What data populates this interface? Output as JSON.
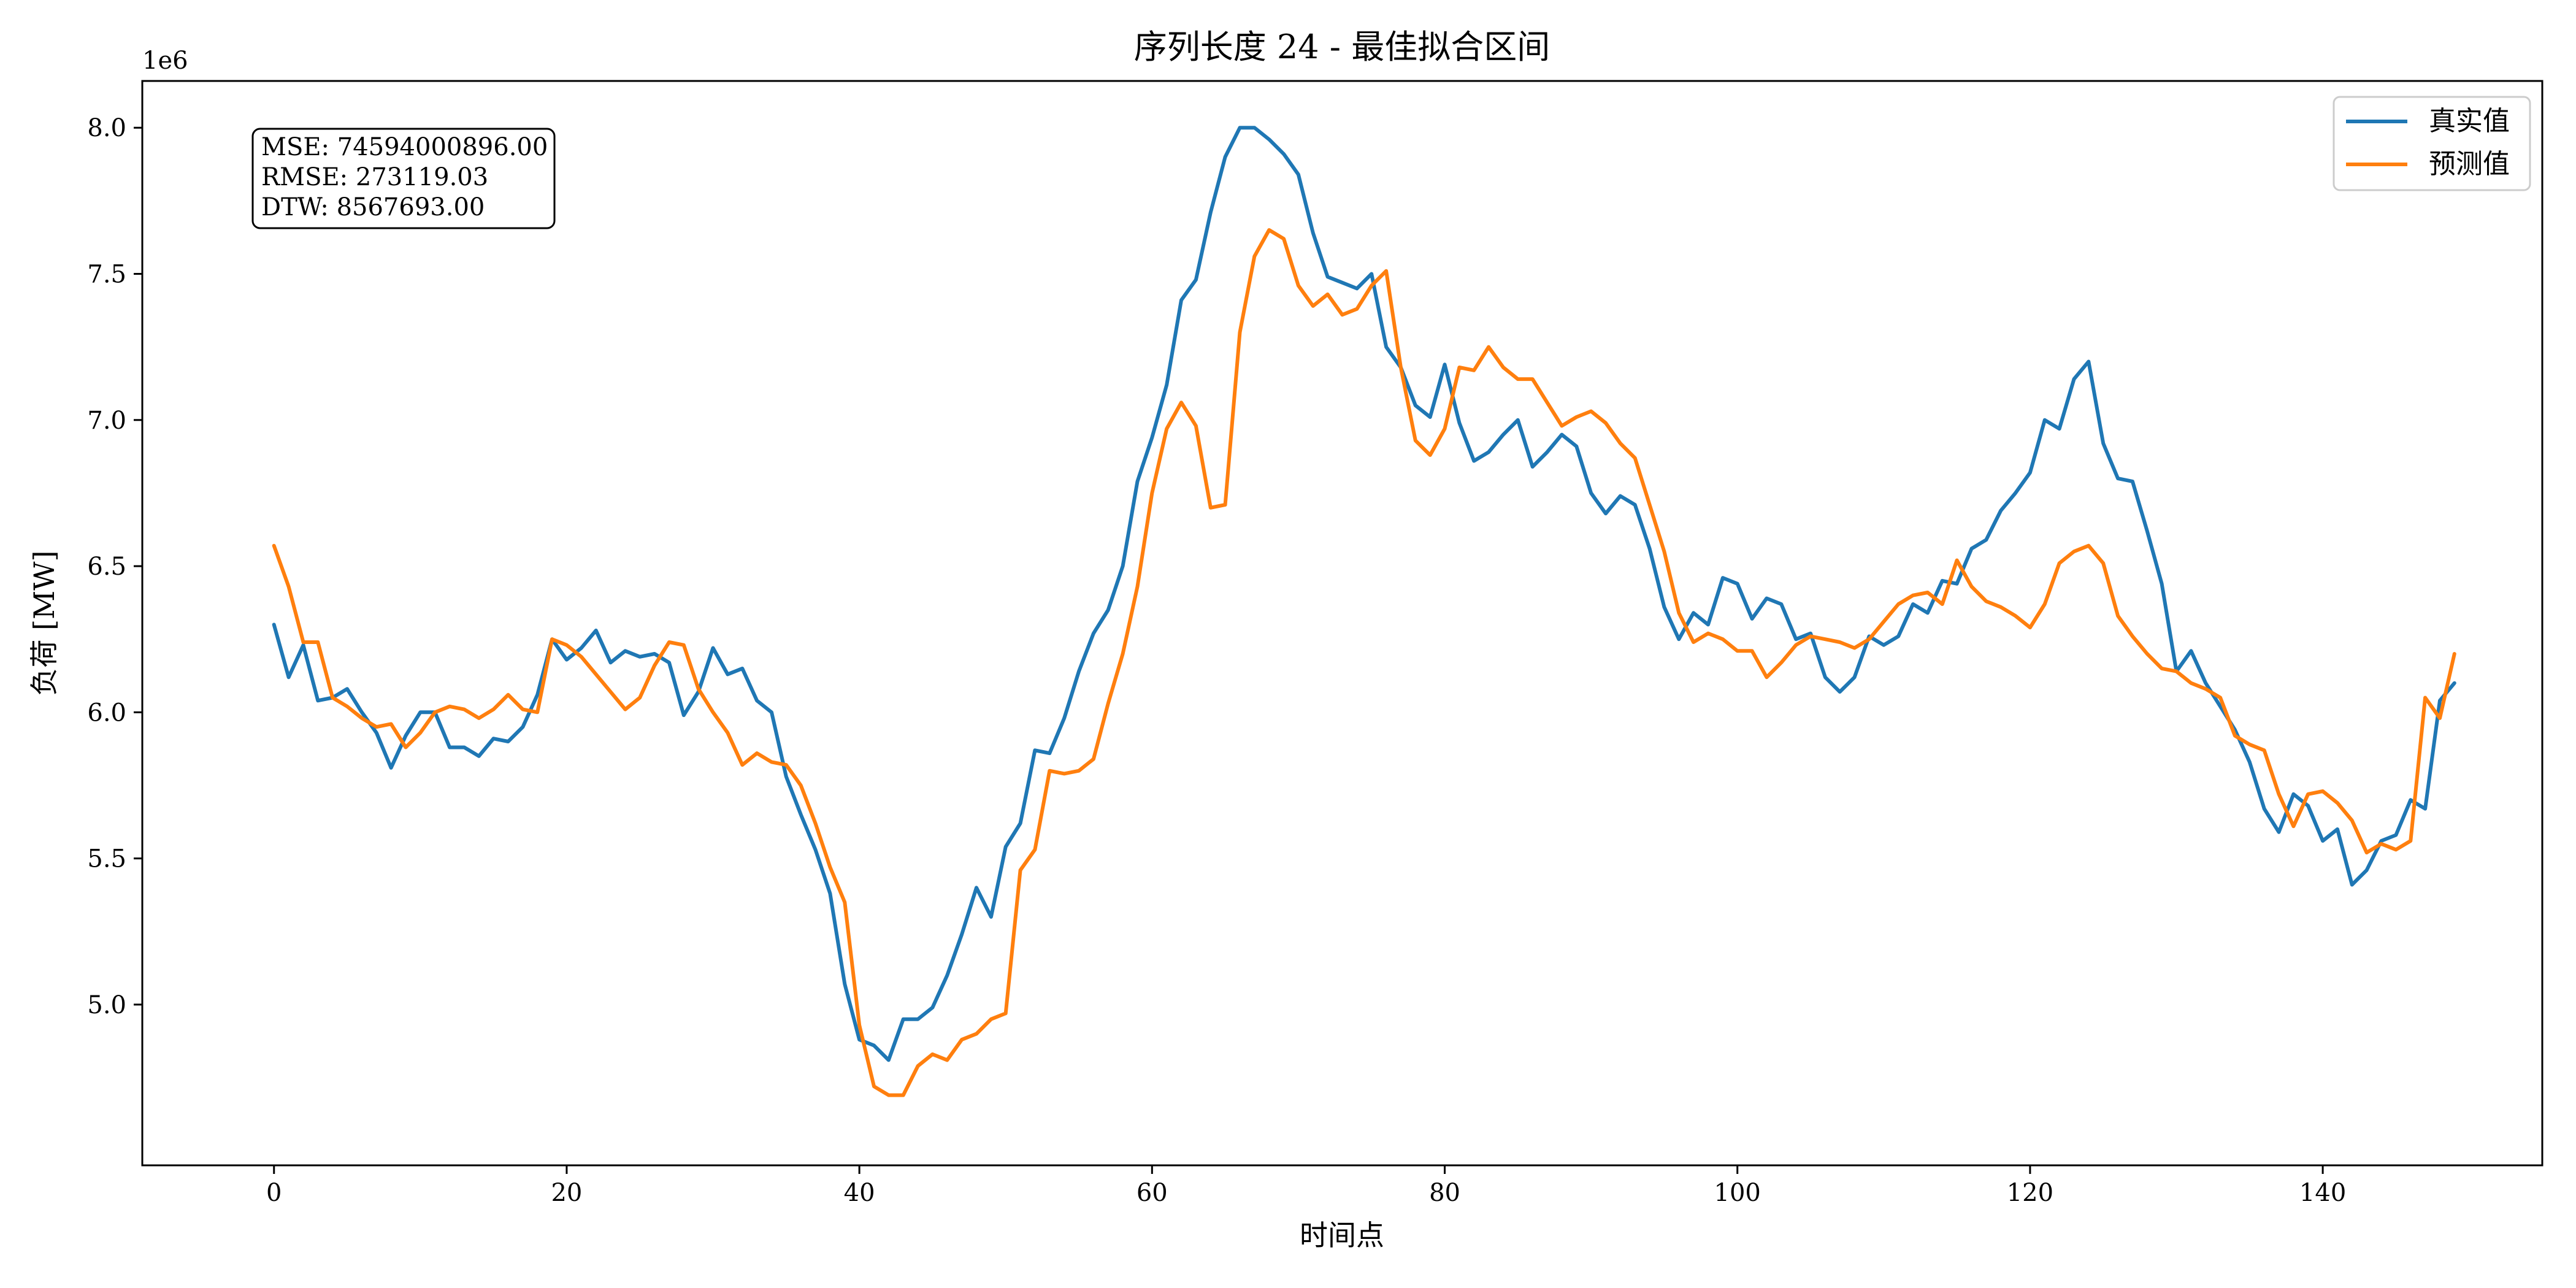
{
  "chart_data": {
    "type": "line",
    "title": "序列长度 24 - 最佳拟合区间",
    "xlabel": "时间点",
    "ylabel": "负荷 [MW]",
    "y_offset_label": "1e6",
    "xlim": [
      -9,
      155
    ],
    "ylim": [
      4450000.0,
      8160000.0
    ],
    "x_ticks": [
      0,
      20,
      40,
      60,
      80,
      100,
      120,
      140
    ],
    "x_tick_labels": [
      "0",
      "20",
      "40",
      "60",
      "80",
      "100",
      "120",
      "140"
    ],
    "y_ticks": [
      5000000,
      5500000,
      6000000,
      6500000,
      7000000,
      7500000,
      8000000
    ],
    "y_tick_labels": [
      "5.0",
      "5.5",
      "6.0",
      "6.5",
      "7.0",
      "7.5",
      "8.0"
    ],
    "grid": false,
    "legend_position": "top-right",
    "metrics_box": [
      "MSE: 74594000896.00",
      "RMSE: 273119.03",
      "DTW: 8567693.00"
    ],
    "series": [
      {
        "name": "真实值",
        "color": "#1f77b4",
        "values": [
          6.3,
          6.12,
          6.23,
          6.04,
          6.05,
          6.08,
          6.0,
          5.93,
          5.81,
          5.92,
          6.0,
          6.0,
          5.88,
          5.88,
          5.85,
          5.91,
          5.9,
          5.95,
          6.06,
          6.25,
          6.18,
          6.22,
          6.28,
          6.17,
          6.21,
          6.19,
          6.2,
          6.17,
          5.99,
          6.07,
          6.22,
          6.13,
          6.15,
          6.04,
          6.0,
          5.78,
          5.65,
          5.53,
          5.38,
          5.07,
          4.88,
          4.86,
          4.81,
          4.95,
          4.95,
          4.99,
          5.1,
          5.24,
          5.4,
          5.3,
          5.54,
          5.62,
          5.87,
          5.86,
          5.98,
          6.14,
          6.27,
          6.35,
          6.5,
          6.79,
          6.94,
          7.12,
          7.41,
          7.48,
          7.71,
          7.9,
          8.0,
          8.0,
          7.96,
          7.91,
          7.84,
          7.64,
          7.49,
          7.47,
          7.45,
          7.5,
          7.25,
          7.18,
          7.05,
          7.01,
          7.19,
          6.99,
          6.86,
          6.89,
          6.95,
          7.0,
          6.84,
          6.89,
          6.95,
          6.91,
          6.75,
          6.68,
          6.74,
          6.71,
          6.56,
          6.36,
          6.25,
          6.34,
          6.3,
          6.46,
          6.44,
          6.32,
          6.39,
          6.37,
          6.25,
          6.27,
          6.12,
          6.07,
          6.12,
          6.26,
          6.23,
          6.26,
          6.37,
          6.34,
          6.45,
          6.44,
          6.56,
          6.59,
          6.69,
          6.75,
          6.82,
          7.0,
          6.97,
          7.14,
          7.2,
          6.92,
          6.8,
          6.79,
          6.62,
          6.44,
          6.14,
          6.21,
          6.1,
          6.02,
          5.94,
          5.83,
          5.67,
          5.59,
          5.72,
          5.68,
          5.56,
          5.6,
          5.41,
          5.46,
          5.56,
          5.58,
          5.7,
          5.67,
          6.04,
          6.1
        ]
      },
      {
        "name": "预测值",
        "color": "#ff7f0e",
        "values": [
          6.57,
          6.43,
          6.24,
          6.24,
          6.05,
          6.02,
          5.98,
          5.95,
          5.96,
          5.88,
          5.93,
          6.0,
          6.02,
          6.01,
          5.98,
          6.01,
          6.06,
          6.01,
          6.0,
          6.25,
          6.23,
          6.19,
          6.13,
          6.07,
          6.01,
          6.05,
          6.16,
          6.24,
          6.23,
          6.08,
          6.0,
          5.93,
          5.82,
          5.86,
          5.83,
          5.82,
          5.75,
          5.62,
          5.47,
          5.35,
          4.93,
          4.72,
          4.69,
          4.69,
          4.79,
          4.83,
          4.81,
          4.88,
          4.9,
          4.95,
          4.97,
          5.46,
          5.53,
          5.8,
          5.79,
          5.8,
          5.84,
          6.03,
          6.2,
          6.43,
          6.75,
          6.97,
          7.06,
          6.98,
          6.7,
          6.71,
          7.3,
          7.56,
          7.65,
          7.62,
          7.46,
          7.39,
          7.43,
          7.36,
          7.38,
          7.46,
          7.51,
          7.18,
          6.93,
          6.88,
          6.97,
          7.18,
          7.17,
          7.25,
          7.18,
          7.14,
          7.14,
          7.06,
          6.98,
          7.01,
          7.03,
          6.99,
          6.92,
          6.87,
          6.71,
          6.55,
          6.34,
          6.24,
          6.27,
          6.25,
          6.21,
          6.21,
          6.12,
          6.17,
          6.23,
          6.26,
          6.25,
          6.24,
          6.22,
          6.25,
          6.31,
          6.37,
          6.4,
          6.41,
          6.37,
          6.52,
          6.43,
          6.38,
          6.36,
          6.33,
          6.29,
          6.37,
          6.51,
          6.55,
          6.57,
          6.51,
          6.33,
          6.26,
          6.2,
          6.15,
          6.14,
          6.1,
          6.08,
          6.05,
          5.92,
          5.89,
          5.87,
          5.72,
          5.61,
          5.72,
          5.73,
          5.69,
          5.63,
          5.52,
          5.55,
          5.53,
          5.56,
          6.05,
          5.98,
          6.2
        ]
      }
    ]
  }
}
